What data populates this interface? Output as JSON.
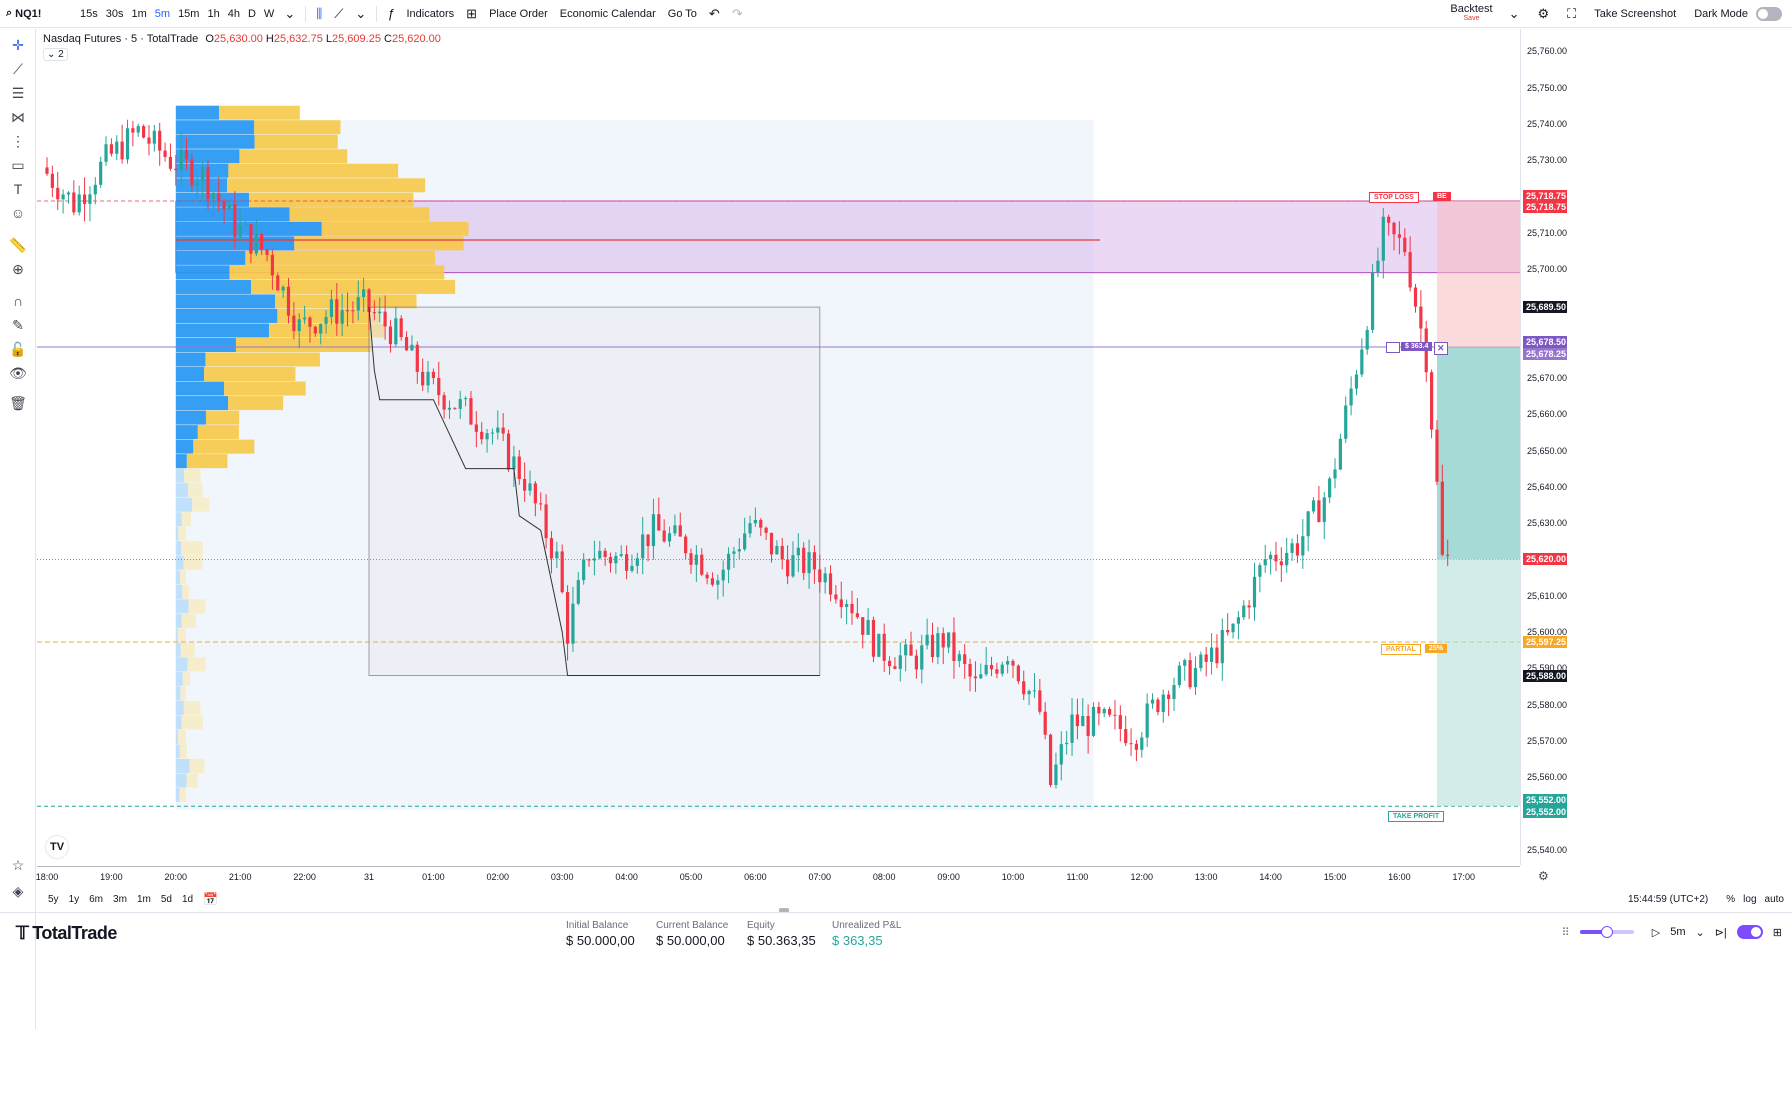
{
  "topbar": {
    "symbol": "NQ1!",
    "timeframes": [
      "15s",
      "30s",
      "1m",
      "5m",
      "15m",
      "1h",
      "4h",
      "D",
      "W"
    ],
    "active_timeframe": "5m",
    "indicators_label": "Indicators",
    "place_order_label": "Place Order",
    "economic_calendar_label": "Economic Calendar",
    "go_to_label": "Go To",
    "backtest_label": "Backtest",
    "backtest_sub": "Save",
    "screenshot_label": "Take Screenshot",
    "dark_mode_label": "Dark Mode"
  },
  "legend": {
    "title": "Nasdaq Futures · 5 · TotalTrade",
    "o_label": "O",
    "o": "25,630.00",
    "h_label": "H",
    "h": "25,632.75",
    "l_label": "L",
    "l": "25,609.25",
    "c_label": "C",
    "c": "25,620.00",
    "layers_count": "2"
  },
  "chart_data": {
    "type": "candlestick",
    "symbol": "NQ1!",
    "interval": "5m",
    "ylim": [
      25538,
      25762
    ],
    "y_ticks": [
      25760,
      25750,
      25740,
      25730,
      25720,
      25710,
      25700,
      25690,
      25680,
      25670,
      25660,
      25650,
      25640,
      25630,
      25620,
      25610,
      25600,
      25590,
      25580,
      25570,
      25560,
      25550,
      25540
    ],
    "x_ticks": [
      "18:00",
      "19:00",
      "20:00",
      "21:00",
      "22:00",
      "31",
      "01:00",
      "02:00",
      "03:00",
      "04:00",
      "05:00",
      "06:00",
      "07:00",
      "08:00",
      "09:00",
      "10:00",
      "11:00",
      "12:00",
      "13:00",
      "14:00",
      "15:00",
      "16:00",
      "17:00"
    ],
    "path_points": [
      [
        "18:00",
        25728
      ],
      [
        "18:30",
        25718
      ],
      [
        "19:00",
        25730
      ],
      [
        "19:30",
        25738
      ],
      [
        "20:00",
        25730
      ],
      [
        "20:30",
        25726
      ],
      [
        "21:00",
        25712
      ],
      [
        "21:30",
        25704
      ],
      [
        "22:00",
        25684
      ],
      [
        "22:30",
        25688
      ],
      [
        "23:00",
        25690
      ],
      [
        "23:30",
        25682
      ],
      [
        "00:00",
        25668
      ],
      [
        "00:30",
        25662
      ],
      [
        "01:00",
        25655
      ],
      [
        "01:30",
        25642
      ],
      [
        "02:00",
        25620
      ],
      [
        "02:10",
        25600
      ],
      [
        "02:30",
        25622
      ],
      [
        "03:00",
        25620
      ],
      [
        "03:30",
        25628
      ],
      [
        "04:00",
        25624
      ],
      [
        "04:30",
        25615
      ],
      [
        "05:00",
        25630
      ],
      [
        "05:30",
        25620
      ],
      [
        "06:00",
        25618
      ],
      [
        "06:30",
        25610
      ],
      [
        "07:00",
        25595
      ],
      [
        "07:30",
        25592
      ],
      [
        "08:00",
        25598
      ],
      [
        "08:30",
        25585
      ],
      [
        "09:00",
        25595
      ],
      [
        "09:30",
        25578
      ],
      [
        "09:40",
        25558
      ],
      [
        "10:00",
        25575
      ],
      [
        "10:30",
        25575
      ],
      [
        "11:00",
        25572
      ],
      [
        "11:30",
        25586
      ],
      [
        "12:00",
        25590
      ],
      [
        "12:30",
        25600
      ],
      [
        "13:00",
        25620
      ],
      [
        "13:30",
        25624
      ],
      [
        "14:00",
        25640
      ],
      [
        "14:30",
        25680
      ],
      [
        "14:50",
        25710
      ],
      [
        "15:10",
        25706
      ],
      [
        "15:30",
        25676
      ],
      [
        "15:40",
        25640
      ],
      [
        "15:45",
        25620
      ]
    ],
    "last_price": 25620.0,
    "volume_profile": {
      "value_area": {
        "high": 25718.75,
        "low": 25699.0
      },
      "poc": 25708.0
    },
    "position": {
      "side": "short",
      "entry": 25678.5,
      "stop_loss": 25718.75,
      "take_profit": 25552.0,
      "partial": 25597.25
    }
  },
  "price_labels": [
    {
      "price": "25,718.75",
      "color": "#f23645"
    },
    {
      "price": "25,718.75",
      "color": "#f23645"
    },
    {
      "price": "25,689.50",
      "color": "#131722"
    },
    {
      "price": "25,678.50",
      "color": "#7e57c2"
    },
    {
      "price": "25,678.25",
      "color": "#9575cd"
    },
    {
      "price": "25,620.00",
      "color": "#f23645"
    },
    {
      "price": "25,597.25",
      "color": "#f9a825"
    },
    {
      "price": "25,588.00",
      "color": "#131722"
    },
    {
      "price": "25,552.00",
      "color": "#26a69a"
    },
    {
      "price": "25,552.00",
      "color": "#26a69a"
    }
  ],
  "trade_labels": {
    "stop_loss": "STOP LOSS",
    "be": "BE",
    "pnl": "$ 363.4",
    "partial": "PARTIAL",
    "partial_pct": "25%",
    "take_profit": "TAKE PROFIT"
  },
  "rangebar": {
    "ranges": [
      "5y",
      "1y",
      "6m",
      "3m",
      "1m",
      "5d",
      "1d"
    ],
    "clock": "15:44:59 (UTC+2)",
    "pct_label": "%",
    "log_label": "log",
    "auto_label": "auto"
  },
  "bottom": {
    "brand": "TotalTrade",
    "initial_balance_label": "Initial Balance",
    "initial_balance": "$ 50.000,00",
    "current_balance_label": "Current Balance",
    "current_balance": "$ 50.000,00",
    "equity_label": "Equity",
    "equity": "$ 50.363,35",
    "unrealized_label": "Unrealized P&L",
    "unrealized": "$ 363,35",
    "replay_interval": "5m",
    "speed": 0.5
  },
  "colors": {
    "up": "#26a69a",
    "down": "#f23645",
    "accent": "#7b4dff",
    "vp_up": "#2196f3",
    "vp_down": "#f7c948"
  }
}
